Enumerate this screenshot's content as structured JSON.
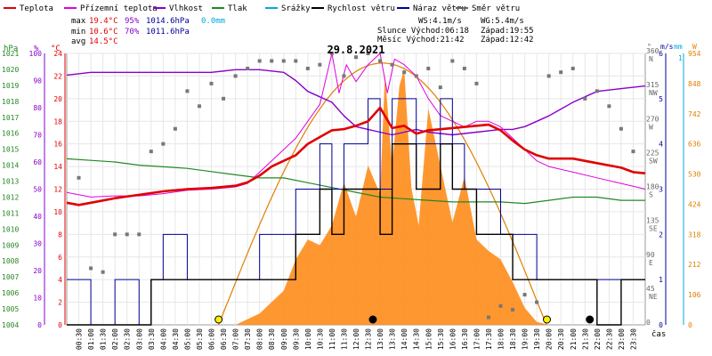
{
  "chart_data": {
    "type": "line",
    "title": "29.8.2021",
    "date": "29.8.2021",
    "xlabel": "čas",
    "legend": [
      {
        "name": "Teplota",
        "color": "#e00000"
      },
      {
        "name": "Přízemní teplota",
        "color": "#e000e0"
      },
      {
        "name": "Vlhkost",
        "color": "#8800cc"
      },
      {
        "name": "Tlak",
        "color": "#228822"
      },
      {
        "name": "Srážky",
        "color": "#00aadd"
      },
      {
        "name": "Rychlost větru",
        "color": "#000000"
      },
      {
        "name": "Náraz větru",
        "color": "#000099"
      },
      {
        "name": "Směr větru",
        "color": "#666666"
      }
    ],
    "stats": {
      "max": {
        "label": "max",
        "temp": "19.4°C",
        "hum": "95%",
        "press": "1014.6hPa",
        "rain": "0.0mm"
      },
      "min": {
        "label": "min",
        "temp": "10.6°C",
        "hum": "70%",
        "press": "1011.6hPa"
      },
      "avg": {
        "label": "avg",
        "temp": "14.5°C"
      }
    },
    "info": {
      "ws": "WS:4.1m/s",
      "wg": "WG:5.4m/s",
      "sun_rise": "Slunce Východ:06:18",
      "sun_set": "Západ:19:55",
      "moon_rise": "Měsíc Východ:21:42",
      "moon_set": "Západ:12:42"
    },
    "axes": {
      "hpa": {
        "unit": "hPa",
        "ticks": [
          "1021",
          "1020",
          "1019",
          "1018",
          "1017",
          "1016",
          "1015",
          "1014",
          "1013",
          "1012",
          "1011",
          "1010",
          "1009",
          "1008",
          "1007",
          "1006",
          "1005",
          "1004"
        ]
      },
      "pct": {
        "unit": "%",
        "ticks": [
          "100",
          "90",
          "80",
          "70",
          "60",
          "50",
          "40",
          "30",
          "20",
          "10",
          "0"
        ]
      },
      "temp": {
        "unit": "°C",
        "ticks": [
          "24",
          "22",
          "20",
          "18",
          "16",
          "14",
          "12",
          "10",
          "8",
          "6",
          "4",
          "2",
          "0"
        ]
      },
      "dir": {
        "unit": "°",
        "ticks": [
          [
            "360",
            "N"
          ],
          [
            "315",
            "NW"
          ],
          [
            "270",
            "W"
          ],
          [
            "225",
            "SW"
          ],
          [
            "180",
            "S"
          ],
          [
            "135",
            "SE"
          ],
          [
            "90",
            "E"
          ],
          [
            "45",
            "NE"
          ],
          [
            "0",
            ""
          ]
        ]
      },
      "wind": {
        "unit": "m/s",
        "ticks": [
          "6",
          "5",
          "4",
          "3",
          "2",
          "1",
          "0"
        ]
      },
      "rain": {
        "unit": "mm",
        "top": "1"
      },
      "solar": {
        "unit": "W",
        "ticks": [
          "954",
          "848",
          "742",
          "636",
          "530",
          "424",
          "318",
          "212",
          "106",
          "0"
        ]
      }
    },
    "xticks": [
      "00:30",
      "01:00",
      "01:30",
      "02:00",
      "02:30",
      "03:00",
      "03:30",
      "04:00",
      "04:30",
      "05:00",
      "05:30",
      "06:00",
      "06:30",
      "07:00",
      "07:30",
      "08:00",
      "08:30",
      "09:00",
      "09:30",
      "10:00",
      "10:30",
      "11:00",
      "11:30",
      "12:00",
      "12:30",
      "13:00",
      "13:30",
      "14:00",
      "14:30",
      "15:00",
      "15:30",
      "16:00",
      "16:30",
      "17:00",
      "17:30",
      "18:00",
      "18:30",
      "19:00",
      "19:30",
      "20:00",
      "20:30",
      "21:00",
      "21:30",
      "22:00",
      "22:30",
      "23:00",
      "23:30"
    ],
    "series": {
      "temperature": {
        "unit": "°C",
        "x": [
          0,
          0.5,
          1,
          2,
          3,
          4,
          5,
          6,
          7,
          7.5,
          8,
          8.5,
          9,
          9.5,
          10,
          10.5,
          11,
          11.5,
          12,
          12.5,
          13,
          13.5,
          14,
          14.5,
          15,
          16,
          17,
          17.5,
          18,
          18.5,
          19,
          19.5,
          20,
          21,
          22,
          23,
          23.5,
          24
        ],
        "y": [
          10.8,
          10.6,
          10.8,
          11.2,
          11.5,
          11.8,
          12.0,
          12.1,
          12.3,
          12.6,
          13.2,
          14.0,
          14.5,
          15.0,
          16.0,
          16.6,
          17.2,
          17.3,
          17.6,
          18.0,
          19.2,
          17.4,
          17.6,
          16.9,
          17.2,
          17.4,
          17.6,
          17.7,
          17.2,
          16.3,
          15.5,
          15.0,
          14.7,
          14.7,
          14.3,
          13.9,
          13.5,
          13.4
        ]
      },
      "ground_temperature": {
        "unit": "°C",
        "x": [
          0,
          1,
          2,
          3,
          4,
          5,
          6,
          7,
          7.5,
          8,
          8.5,
          9,
          9.5,
          10,
          10.5,
          11,
          11.3,
          11.6,
          12,
          12.5,
          13,
          13.3,
          13.6,
          14,
          14.5,
          15,
          15.5,
          16,
          16.5,
          17,
          17.5,
          18,
          18.5,
          19,
          19.5,
          20,
          21,
          22,
          23,
          24
        ],
        "y": [
          11.7,
          11.3,
          11.4,
          11.4,
          11.6,
          11.9,
          12.0,
          12.2,
          12.5,
          13.5,
          14.5,
          15.5,
          16.5,
          18.0,
          19.5,
          24.0,
          20.5,
          23.0,
          21.5,
          23.0,
          24.0,
          20.5,
          23.5,
          23.0,
          22.0,
          20.0,
          18.5,
          18.0,
          17.5,
          18.0,
          18.0,
          17.5,
          16.5,
          15.5,
          14.5,
          14.0,
          13.5,
          13.0,
          12.5,
          12.0
        ]
      },
      "humidity": {
        "unit": "%",
        "x": [
          0,
          1,
          2,
          3,
          4,
          5,
          6,
          7,
          8,
          9,
          9.5,
          10,
          10.5,
          11,
          11.5,
          12,
          12.5,
          13,
          13.5,
          14,
          14.5,
          15,
          16,
          17,
          18,
          18.5,
          19,
          19.5,
          20,
          21,
          22,
          23,
          24
        ],
        "y": [
          92,
          93,
          93,
          93,
          93,
          93,
          93,
          94,
          94,
          93,
          90,
          86,
          84,
          82,
          77,
          73,
          72,
          71,
          70,
          71,
          72,
          71,
          70,
          71,
          72,
          72,
          73,
          75,
          77,
          82,
          86,
          87,
          88
        ]
      },
      "pressure": {
        "unit": "hPa",
        "x": [
          0,
          1,
          2,
          3,
          4,
          5,
          6,
          7,
          8,
          9,
          10,
          11,
          12,
          13,
          14,
          15,
          16,
          17,
          18,
          19,
          20,
          21,
          22,
          23,
          24
        ],
        "y": [
          1014.4,
          1014.3,
          1014.2,
          1014.0,
          1013.9,
          1013.8,
          1013.6,
          1013.4,
          1013.2,
          1013.2,
          1012.9,
          1012.6,
          1012.3,
          1012.0,
          1011.9,
          1011.8,
          1011.7,
          1011.7,
          1011.7,
          1011.6,
          1011.8,
          1012.0,
          1012.0,
          1011.8,
          1011.8
        ]
      },
      "solar": {
        "unit": "W/m²",
        "x": [
          7,
          8,
          9,
          9.5,
          10,
          10.5,
          11,
          11.5,
          12,
          12.5,
          13,
          13.2,
          13.5,
          13.8,
          14,
          14.3,
          14.6,
          15,
          15.5,
          16,
          16.5,
          17,
          17.5,
          18,
          18.5,
          19,
          19.5,
          20
        ],
        "y": [
          0,
          40,
          120,
          230,
          300,
          280,
          350,
          500,
          380,
          560,
          460,
          880,
          560,
          840,
          900,
          480,
          350,
          760,
          560,
          360,
          520,
          300,
          260,
          230,
          150,
          60,
          10,
          0
        ]
      },
      "solar_clear_sky": {
        "unit": "W/m²",
        "x": [
          6.3,
          8,
          10,
          12,
          14,
          16,
          18,
          19.9
        ],
        "y": [
          0,
          380,
          750,
          920,
          920,
          740,
          370,
          0
        ]
      },
      "wind_speed": {
        "unit": "m/s",
        "x": [
          0,
          1,
          2,
          3,
          3.5,
          4,
          5,
          6,
          7,
          8,
          9,
          9.5,
          10,
          10.5,
          11,
          11.5,
          12,
          12.5,
          13,
          13.5,
          14,
          14.5,
          15,
          15.5,
          16,
          16.5,
          17,
          17.5,
          18,
          18.5,
          19,
          19.5,
          20,
          21,
          22,
          23,
          24
        ],
        "y": [
          0,
          0,
          0,
          0,
          1,
          1,
          1,
          1,
          1,
          1,
          1,
          2,
          2,
          3,
          2,
          3,
          3,
          3,
          2,
          4,
          4,
          3,
          3,
          4,
          3,
          3,
          2,
          2,
          2,
          1,
          1,
          1,
          1,
          1,
          0,
          1,
          1
        ]
      },
      "wind_gust": {
        "unit": "m/s",
        "x": [
          0,
          1,
          2,
          3,
          3.5,
          4,
          5,
          6,
          7,
          8,
          9,
          9.5,
          10,
          10.5,
          11,
          11.5,
          12,
          12.5,
          13,
          13.5,
          14,
          14.5,
          15,
          15.5,
          16,
          16.5,
          17,
          17.5,
          18,
          18.5,
          19,
          19.5,
          20,
          21,
          22,
          23,
          24
        ],
        "y": [
          1,
          0,
          1,
          0,
          1,
          2,
          1,
          1,
          1,
          2,
          2,
          3,
          3,
          4,
          3,
          4,
          4,
          5,
          3,
          5,
          5,
          4,
          4,
          5,
          4,
          3,
          3,
          3,
          2,
          2,
          2,
          1,
          1,
          1,
          1,
          1,
          1
        ]
      },
      "wind_direction": {
        "unit": "°",
        "x": [
          0.5,
          1,
          1.5,
          2,
          2.5,
          3,
          3.5,
          4,
          4.5,
          5,
          5.5,
          6,
          6.5,
          7,
          7.5,
          8,
          8.5,
          9,
          9.5,
          10,
          10.5,
          11,
          11.5,
          12,
          12.5,
          13,
          13.5,
          14,
          14.5,
          15,
          15.5,
          16,
          16.5,
          17,
          17.5,
          18,
          18.5,
          19,
          19.5,
          20,
          20.5,
          21,
          21.5,
          22,
          22.5,
          23,
          23.5
        ],
        "y": [
          195,
          75,
          70,
          120,
          120,
          120,
          230,
          240,
          260,
          310,
          290,
          320,
          300,
          330,
          340,
          350,
          350,
          350,
          350,
          340,
          345,
          360,
          330,
          355,
          360,
          350,
          345,
          335,
          330,
          340,
          315,
          350,
          340,
          320,
          10,
          25,
          20,
          40,
          30,
          330,
          335,
          340,
          300,
          310,
          290,
          260,
          230
        ]
      }
    }
  }
}
